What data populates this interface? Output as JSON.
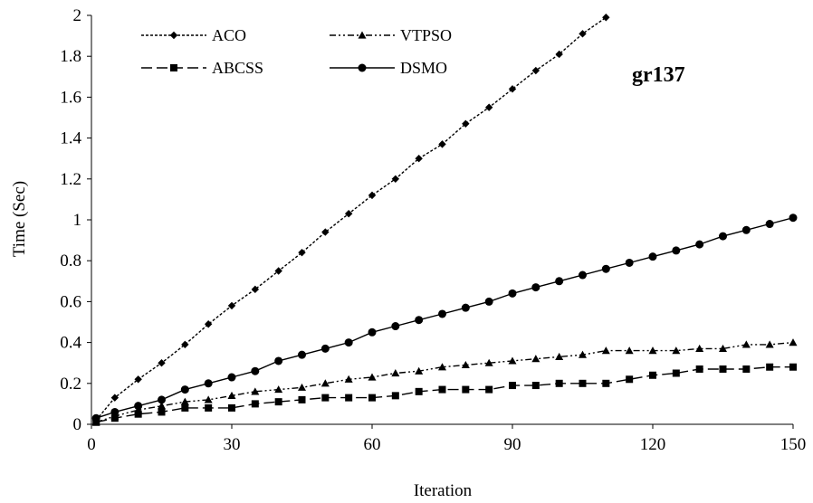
{
  "chart_data": {
    "type": "line",
    "title": "",
    "annotation": "gr137",
    "xlabel": "Iteration",
    "ylabel": "Time (Sec)",
    "xlim": [
      0,
      150
    ],
    "ylim": [
      0,
      2
    ],
    "xticks": [
      0,
      30,
      60,
      90,
      120,
      150
    ],
    "yticks": [
      0,
      0.2,
      0.4,
      0.6,
      0.8,
      1,
      1.2,
      1.4,
      1.6,
      1.8,
      2
    ],
    "ytick_labels": [
      "0",
      "0.2",
      "0.4",
      "0.6",
      "0.8",
      "1",
      "1.2",
      "1.4",
      "1.6",
      "1.8",
      "2"
    ],
    "grid": false,
    "legend_position": "top-left",
    "series": [
      {
        "name": "ACO",
        "marker": "diamond",
        "dash": "dotted",
        "x": [
          1,
          5,
          10,
          15,
          20,
          25,
          30,
          35,
          40,
          45,
          50,
          55,
          60,
          65,
          70,
          75,
          80,
          85,
          90,
          95,
          100,
          105,
          110
        ],
        "y": [
          0.02,
          0.13,
          0.22,
          0.3,
          0.39,
          0.49,
          0.58,
          0.66,
          0.75,
          0.84,
          0.94,
          1.03,
          1.12,
          1.2,
          1.3,
          1.37,
          1.47,
          1.55,
          1.64,
          1.73,
          1.81,
          1.91,
          1.99
        ]
      },
      {
        "name": "VTPSO",
        "marker": "triangle",
        "dash": "dash-dot-dot",
        "x": [
          1,
          5,
          10,
          15,
          20,
          25,
          30,
          35,
          40,
          45,
          50,
          55,
          60,
          65,
          70,
          75,
          80,
          85,
          90,
          95,
          100,
          105,
          110,
          115,
          120,
          125,
          130,
          135,
          140,
          145,
          150
        ],
        "y": [
          0.01,
          0.04,
          0.07,
          0.09,
          0.11,
          0.12,
          0.14,
          0.16,
          0.17,
          0.18,
          0.2,
          0.22,
          0.23,
          0.25,
          0.26,
          0.28,
          0.29,
          0.3,
          0.31,
          0.32,
          0.33,
          0.34,
          0.36,
          0.36,
          0.36,
          0.36,
          0.37,
          0.37,
          0.39,
          0.39,
          0.4
        ]
      },
      {
        "name": "ABCSS",
        "marker": "square",
        "dash": "long-dash",
        "x": [
          1,
          5,
          10,
          15,
          20,
          25,
          30,
          35,
          40,
          45,
          50,
          55,
          60,
          65,
          70,
          75,
          80,
          85,
          90,
          95,
          100,
          105,
          110,
          115,
          120,
          125,
          130,
          135,
          140,
          145,
          150
        ],
        "y": [
          0.01,
          0.03,
          0.05,
          0.06,
          0.08,
          0.08,
          0.08,
          0.1,
          0.11,
          0.12,
          0.13,
          0.13,
          0.13,
          0.14,
          0.16,
          0.17,
          0.17,
          0.17,
          0.19,
          0.19,
          0.2,
          0.2,
          0.2,
          0.22,
          0.24,
          0.25,
          0.27,
          0.27,
          0.27,
          0.28,
          0.28
        ]
      },
      {
        "name": "DSMO",
        "marker": "circle",
        "dash": "solid",
        "x": [
          1,
          5,
          10,
          15,
          20,
          25,
          30,
          35,
          40,
          45,
          50,
          55,
          60,
          65,
          70,
          75,
          80,
          85,
          90,
          95,
          100,
          105,
          110,
          115,
          120,
          125,
          130,
          135,
          140,
          145,
          150
        ],
        "y": [
          0.03,
          0.06,
          0.09,
          0.12,
          0.17,
          0.2,
          0.23,
          0.26,
          0.31,
          0.34,
          0.37,
          0.4,
          0.45,
          0.48,
          0.51,
          0.54,
          0.57,
          0.6,
          0.64,
          0.67,
          0.7,
          0.73,
          0.76,
          0.79,
          0.82,
          0.85,
          0.88,
          0.92,
          0.95,
          0.98,
          1.01
        ]
      }
    ]
  }
}
